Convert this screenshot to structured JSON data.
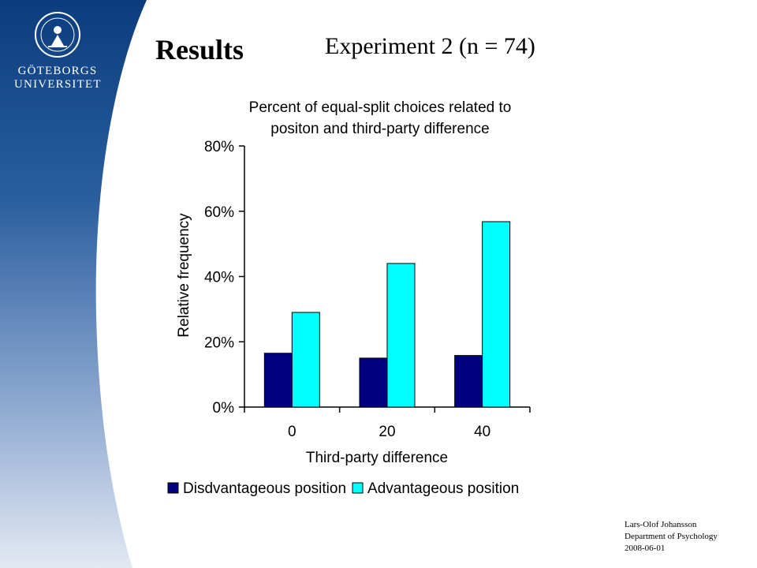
{
  "slide": {
    "title": "Results",
    "subtitle": "Experiment 2 (n = 74)"
  },
  "logo": {
    "line1": "GÖTEBORGS",
    "line2": "UNIVERSITET"
  },
  "footer": {
    "author": "Lars-Olof Johansson",
    "department": "Department of Psychology",
    "date": "2008-06-01"
  },
  "colors": {
    "sidebar_dark": "#0b3d7e",
    "sidebar_light": "#dfe6f2",
    "series_disadvantageous": "#000080",
    "series_advantageous": "#00ffff"
  },
  "chart_data": {
    "type": "bar",
    "title": [
      "Percent of equal-split choices related to",
      "positon and third-party difference"
    ],
    "xlabel": "Third-party difference",
    "ylabel": "Relative frequency",
    "categories": [
      "0",
      "20",
      "40"
    ],
    "ylim": [
      0,
      80
    ],
    "yticks": [
      0,
      20,
      40,
      60,
      80
    ],
    "ytick_labels": [
      "0%",
      "20%",
      "40%",
      "60%",
      "80%"
    ],
    "grid": false,
    "legend_position": "bottom",
    "series": [
      {
        "name": "Disdvantageous position",
        "values": [
          16.5,
          15,
          15.8
        ],
        "color": "#000080"
      },
      {
        "name": "Advantageous position",
        "values": [
          29,
          44,
          56.8
        ],
        "color": "#00ffff"
      }
    ]
  }
}
